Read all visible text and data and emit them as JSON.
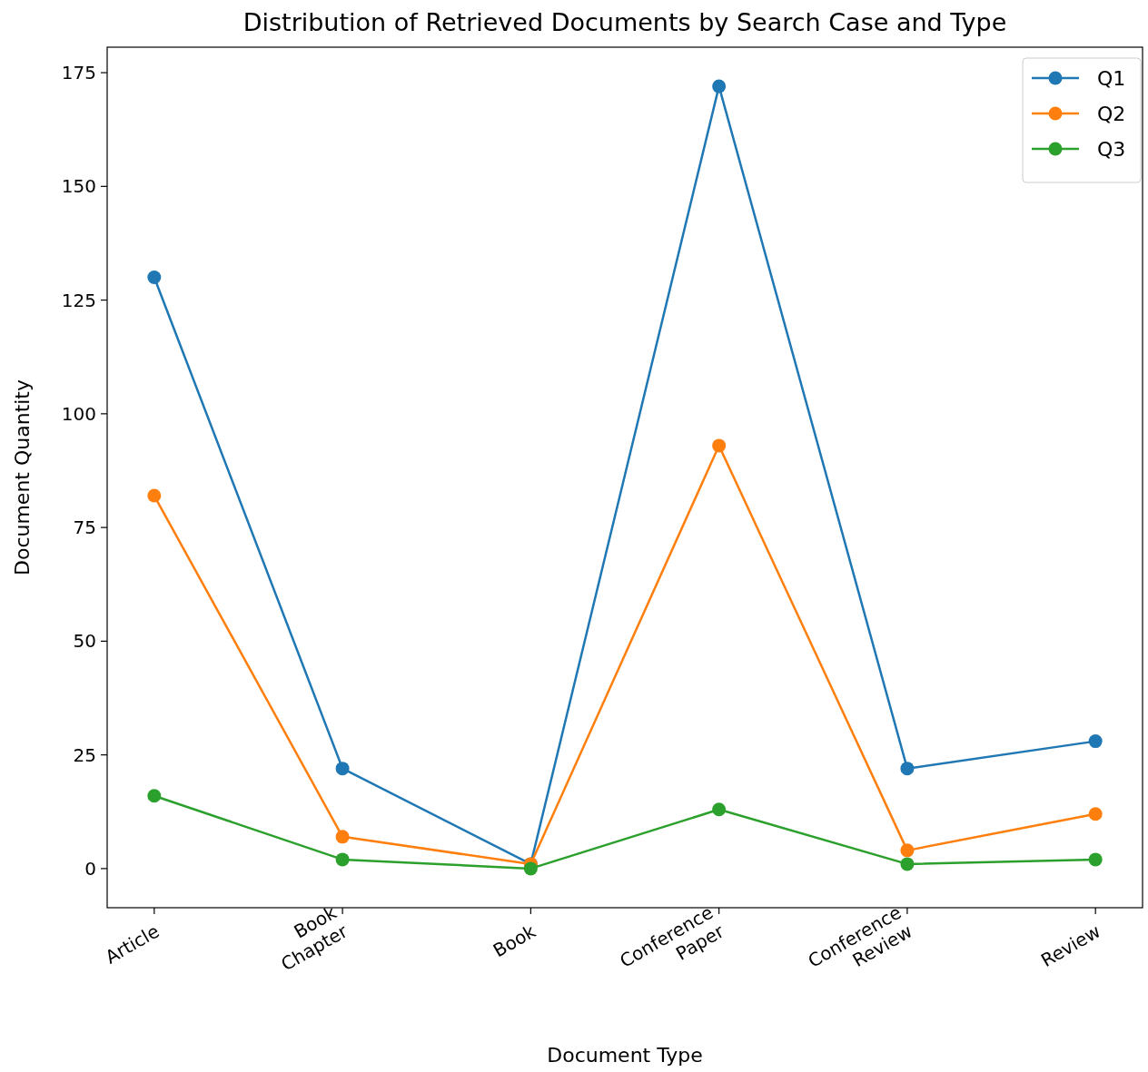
{
  "chart_data": {
    "type": "line",
    "title": "Distribution of Retrieved Documents by Search Case and Type",
    "xlabel": "Document Type",
    "ylabel": "Document Quantity",
    "categories": [
      "Article",
      "Book Chapter",
      "Book",
      "Conference Paper",
      "Conference Review",
      "Review"
    ],
    "series": [
      {
        "name": "Q1",
        "color": "#1f77b4",
        "values": [
          130,
          22,
          1,
          172,
          22,
          28
        ]
      },
      {
        "name": "Q2",
        "color": "#ff7f0e",
        "values": [
          82,
          7,
          1,
          93,
          4,
          12
        ]
      },
      {
        "name": "Q3",
        "color": "#2ca02c",
        "values": [
          16,
          2,
          0,
          13,
          1,
          2
        ]
      }
    ],
    "ylim": [
      -8.6,
      180.6
    ],
    "yticks": [
      0,
      25,
      50,
      75,
      100,
      125,
      150,
      175
    ],
    "grid": false,
    "legend": "top right",
    "marker": "circle",
    "line_style": "solid"
  }
}
